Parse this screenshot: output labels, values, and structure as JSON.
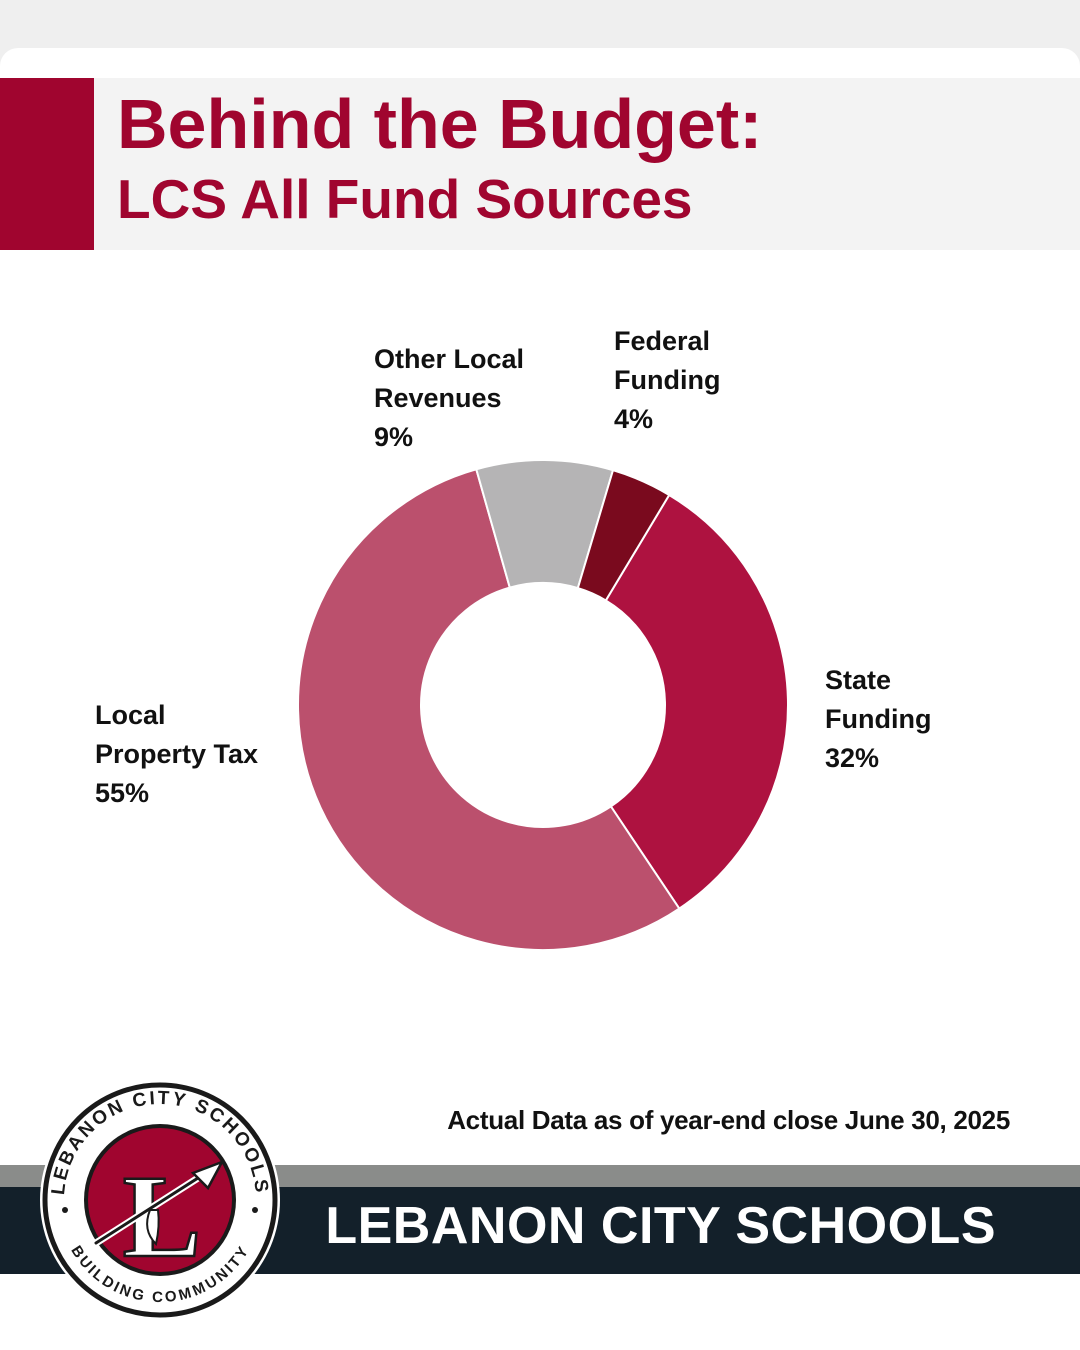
{
  "header": {
    "title": "Behind the Budget:",
    "subtitle": "LCS All Fund Sources"
  },
  "colors": {
    "accent": "#a0052f",
    "footer_dark": "#13202a",
    "footer_gray": "#8a8c8a"
  },
  "chart_data": {
    "type": "pie",
    "title": "Behind the Budget: LCS All Fund Sources",
    "donut": true,
    "slices": [
      {
        "label_lines": [
          "State",
          "Funding"
        ],
        "pct_label": "32%",
        "value": 32,
        "color": "#ae1240"
      },
      {
        "label_lines": [
          "Local",
          "Property Tax"
        ],
        "pct_label": "55%",
        "value": 55,
        "color": "#bb506d"
      },
      {
        "label_lines": [
          "Other Local",
          "Revenues"
        ],
        "pct_label": "9%",
        "value": 9,
        "color": "#b5b4b5"
      },
      {
        "label_lines": [
          "Federal",
          "Funding"
        ],
        "pct_label": "4%",
        "value": 4,
        "color": "#7a0a1e"
      }
    ]
  },
  "note": "Actual Data as of year-end close June 30, 2025",
  "footer": {
    "name": "LEBANON CITY SCHOOLS"
  },
  "logo": {
    "ring_top_text": "LEBANON CITY SCHOOLS",
    "ring_bottom_text": "BUILDING COMMUNITY",
    "monogram": "L"
  }
}
